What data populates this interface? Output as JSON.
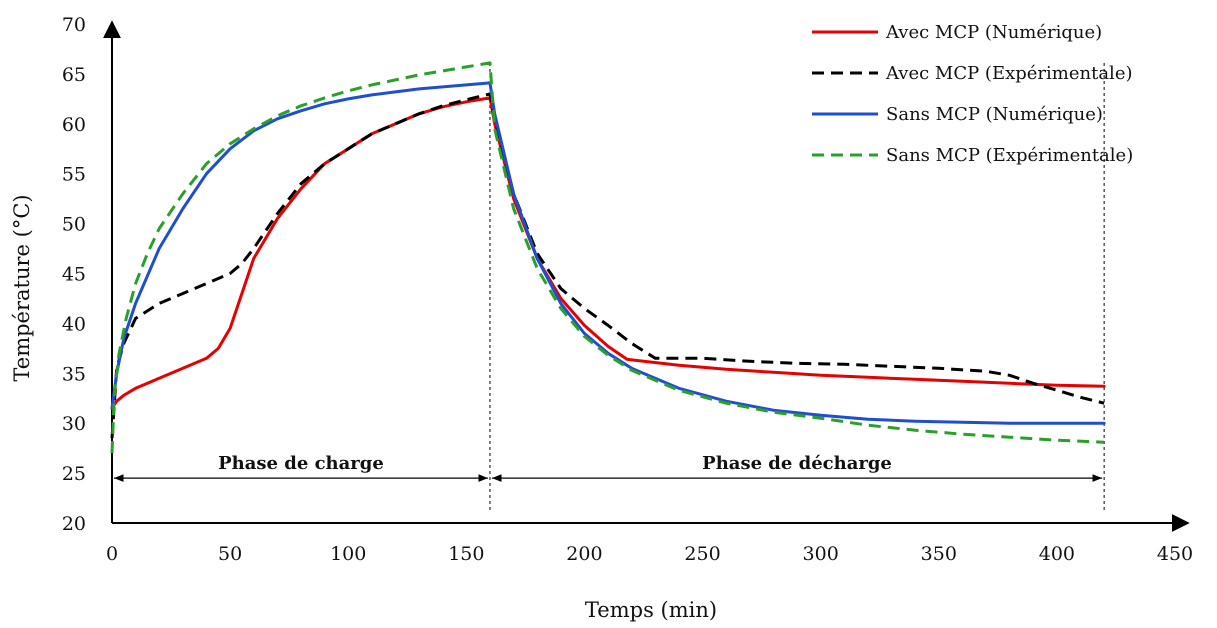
{
  "chart_data": {
    "type": "line",
    "title": "",
    "xlabel": "Temps (min)",
    "ylabel": "Température (°C)",
    "xlim": [
      0,
      450
    ],
    "ylim": [
      20,
      70
    ],
    "xticks": [
      0,
      50,
      100,
      150,
      200,
      250,
      300,
      350,
      400,
      450
    ],
    "yticks": [
      20,
      25,
      30,
      35,
      40,
      45,
      50,
      55,
      60,
      65,
      70
    ],
    "grid": false,
    "legend_position": "top-right",
    "series": [
      {
        "name": "Avec MCP (Numérique)",
        "color": "#e60000",
        "style": "solid",
        "x": [
          0,
          2,
          5,
          10,
          20,
          30,
          40,
          45,
          50,
          55,
          60,
          70,
          80,
          90,
          100,
          110,
          120,
          130,
          140,
          150,
          160,
          162,
          170,
          180,
          190,
          200,
          210,
          218,
          240,
          260,
          280,
          300,
          320,
          340,
          360,
          380,
          400,
          420
        ],
        "y": [
          31.5,
          32.2,
          32.8,
          33.5,
          34.5,
          35.5,
          36.5,
          37.5,
          39.5,
          43,
          46.5,
          50.5,
          53.5,
          56,
          57.5,
          59,
          60,
          61,
          61.7,
          62.2,
          62.6,
          60,
          52.5,
          46.5,
          42.5,
          39.8,
          37.7,
          36.4,
          35.8,
          35.4,
          35.1,
          34.8,
          34.6,
          34.4,
          34.2,
          34.0,
          33.8,
          33.7
        ]
      },
      {
        "name": "Avec MCP (Expérimentale)",
        "color": "#000000",
        "style": "dashed",
        "x": [
          0,
          2,
          5,
          10,
          20,
          30,
          40,
          50,
          55,
          60,
          70,
          80,
          90,
          100,
          110,
          120,
          130,
          140,
          150,
          160,
          162,
          170,
          180,
          190,
          200,
          210,
          220,
          230,
          250,
          270,
          290,
          310,
          330,
          350,
          370,
          380,
          390,
          400,
          410,
          420
        ],
        "y": [
          28.5,
          35.5,
          38,
          40.5,
          42,
          43,
          44,
          45,
          46,
          47.5,
          51,
          54,
          56,
          57.5,
          59,
          60,
          61,
          61.8,
          62.4,
          63,
          60.5,
          53,
          47,
          43.5,
          41.5,
          39.8,
          38,
          36.5,
          36.5,
          36.2,
          36.0,
          35.9,
          35.7,
          35.5,
          35.2,
          34.8,
          34.0,
          33.3,
          32.6,
          32.0
        ]
      },
      {
        "name": "Sans MCP (Numérique)",
        "color": "#1f4fd1",
        "style": "solid",
        "x": [
          0,
          2,
          5,
          10,
          20,
          30,
          40,
          50,
          60,
          70,
          80,
          90,
          100,
          110,
          120,
          130,
          140,
          150,
          160,
          162,
          170,
          180,
          190,
          200,
          210,
          220,
          240,
          260,
          280,
          300,
          320,
          340,
          360,
          380,
          400,
          420
        ],
        "y": [
          31.5,
          35,
          38.5,
          42,
          47.5,
          51.5,
          55,
          57.5,
          59.3,
          60.5,
          61.3,
          62,
          62.5,
          62.9,
          63.2,
          63.5,
          63.7,
          63.9,
          64.1,
          61,
          53,
          46.5,
          42,
          39,
          37,
          35.5,
          33.5,
          32.2,
          31.3,
          30.8,
          30.4,
          30.2,
          30.1,
          30.0,
          30.0,
          30.0
        ]
      },
      {
        "name": "Sans MCP (Expérimentale)",
        "color": "#2aa02a",
        "style": "dashed",
        "x": [
          0,
          1,
          3,
          6,
          10,
          15,
          20,
          30,
          40,
          50,
          60,
          70,
          80,
          90,
          100,
          110,
          120,
          130,
          140,
          150,
          160,
          162,
          170,
          180,
          190,
          200,
          210,
          220,
          240,
          260,
          280,
          300,
          320,
          340,
          360,
          380,
          400,
          420
        ],
        "y": [
          27,
          33,
          37,
          40.5,
          44,
          47,
          49.5,
          53,
          56,
          58,
          59.5,
          60.8,
          61.8,
          62.6,
          63.3,
          63.9,
          64.4,
          64.9,
          65.3,
          65.7,
          66.1,
          59.5,
          51.5,
          45.5,
          41.5,
          38.7,
          36.8,
          35.3,
          33.3,
          32.0,
          31.1,
          30.5,
          29.8,
          29.3,
          28.9,
          28.6,
          28.3,
          28.1
        ]
      }
    ],
    "dividers_x": [
      160,
      420
    ],
    "annotations": [
      {
        "text": "Phase de charge",
        "x_from": 0,
        "x_to": 160,
        "y": 24.5
      },
      {
        "text": "Phase de décharge",
        "x_from": 160,
        "x_to": 420,
        "y": 24.5
      }
    ]
  }
}
